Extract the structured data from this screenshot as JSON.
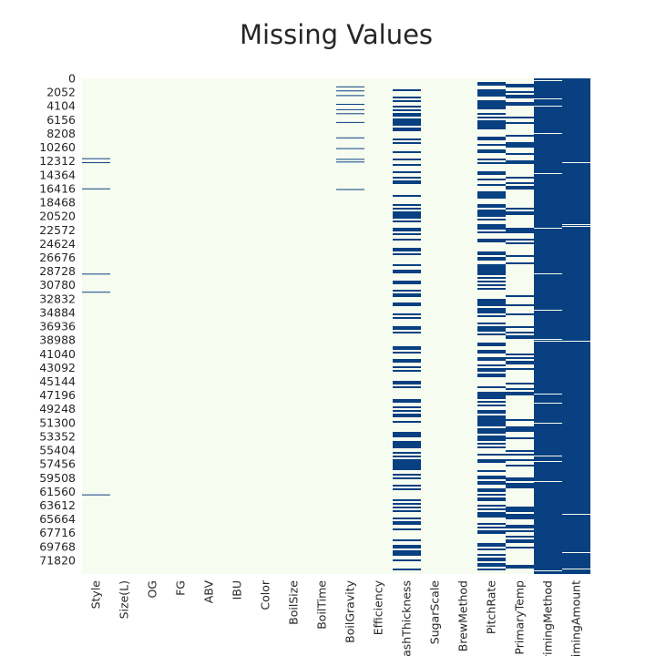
{
  "chart_data": {
    "type": "heatmap",
    "title": "Missing Values",
    "xlabel": "",
    "ylabel": "",
    "colors": {
      "present": "#f7fcf0",
      "missing": "#084081"
    },
    "grid": false,
    "legend": "none",
    "y_range": [
      0,
      73861
    ],
    "y_ticks": [
      "0",
      "2052",
      "4104",
      "6156",
      "8208",
      "10260",
      "12312",
      "14364",
      "16416",
      "18468",
      "20520",
      "22572",
      "24624",
      "26676",
      "28728",
      "30780",
      "32832",
      "34884",
      "36936",
      "38988",
      "41040",
      "43092",
      "45144",
      "47196",
      "49248",
      "51300",
      "53352",
      "55404",
      "57456",
      "59508",
      "61560",
      "63612",
      "65664",
      "67716",
      "69768",
      "71820"
    ],
    "x_ticks": [
      "Style",
      "Size(L)",
      "OG",
      "FG",
      "ABV",
      "IBU",
      "Color",
      "BoilSize",
      "BoilTime",
      "BoilGravity",
      "Efficiency",
      "MashThickness",
      "SugarScale",
      "BrewMethod",
      "PitchRate",
      "PrimaryTemp",
      "PrimingMethod",
      "PrimingAmount"
    ],
    "series": [
      {
        "name": "Style",
        "missing_fraction": 0.01,
        "missing_rows": [
          11900,
          12500,
          16400,
          29100,
          31800,
          62000
        ]
      },
      {
        "name": "Size(L)",
        "missing_fraction": 0.0,
        "missing_rows": []
      },
      {
        "name": "OG",
        "missing_fraction": 0.0,
        "missing_rows": []
      },
      {
        "name": "FG",
        "missing_fraction": 0.0,
        "missing_rows": []
      },
      {
        "name": "ABV",
        "missing_fraction": 0.0,
        "missing_rows": []
      },
      {
        "name": "IBU",
        "missing_fraction": 0.0,
        "missing_rows": []
      },
      {
        "name": "Color",
        "missing_fraction": 0.0,
        "missing_rows": []
      },
      {
        "name": "BoilSize",
        "missing_fraction": 0.0,
        "missing_rows": []
      },
      {
        "name": "BoilTime",
        "missing_fraction": 0.0,
        "missing_rows": []
      },
      {
        "name": "BoilGravity",
        "missing_fraction": 0.04,
        "missing_rows": [
          1200,
          1800,
          2500,
          3800,
          4600,
          5200,
          6500,
          8800,
          10400,
          12000,
          12400,
          16500
        ]
      },
      {
        "name": "Efficiency",
        "missing_fraction": 0.0,
        "missing_rows": []
      },
      {
        "name": "MashThickness",
        "missing_fraction": 0.4,
        "missing_rows": []
      },
      {
        "name": "SugarScale",
        "missing_fraction": 0.0,
        "missing_rows": []
      },
      {
        "name": "BrewMethod",
        "missing_fraction": 0.0,
        "missing_rows": []
      },
      {
        "name": "PitchRate",
        "missing_fraction": 0.53,
        "missing_rows": []
      },
      {
        "name": "PrimaryTemp",
        "missing_fraction": 0.3,
        "missing_rows": []
      },
      {
        "name": "PrimingMethod",
        "missing_fraction": 0.9,
        "missing_rows": []
      },
      {
        "name": "PrimingAmount",
        "missing_fraction": 0.94,
        "missing_rows": []
      }
    ]
  }
}
